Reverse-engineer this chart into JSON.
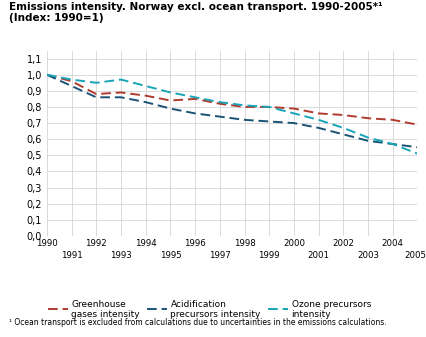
{
  "title_line1": "Emissions intensity. Norway excl. ocean transport. 1990-2005*¹",
  "title_line2": "(Index: 1990=1)",
  "footnote": "¹ Ocean transport is excluded from calculations due to uncertainties in the emissions calculations.",
  "years": [
    1990,
    1991,
    1992,
    1993,
    1994,
    1995,
    1996,
    1997,
    1998,
    1999,
    2000,
    2001,
    2002,
    2003,
    2004,
    2005
  ],
  "greenhouse": [
    1.0,
    0.96,
    0.88,
    0.89,
    0.87,
    0.84,
    0.85,
    0.82,
    0.8,
    0.8,
    0.79,
    0.76,
    0.75,
    0.73,
    0.72,
    0.69
  ],
  "acidification": [
    1.0,
    0.93,
    0.86,
    0.86,
    0.83,
    0.79,
    0.76,
    0.74,
    0.72,
    0.71,
    0.7,
    0.67,
    0.63,
    0.59,
    0.57,
    0.55
  ],
  "ozone": [
    1.0,
    0.97,
    0.95,
    0.97,
    0.93,
    0.89,
    0.86,
    0.83,
    0.81,
    0.8,
    0.76,
    0.72,
    0.67,
    0.61,
    0.57,
    0.51
  ],
  "greenhouse_color": "#b03a2e",
  "acidification_color": "#1a5276",
  "ozone_color": "#17a5b8",
  "ylim": [
    0.0,
    1.15
  ],
  "yticks": [
    0.0,
    0.1,
    0.2,
    0.3,
    0.4,
    0.5,
    0.6,
    0.7,
    0.8,
    0.9,
    1.0,
    1.1
  ],
  "background_color": "#ffffff",
  "grid_color": "#cccccc"
}
